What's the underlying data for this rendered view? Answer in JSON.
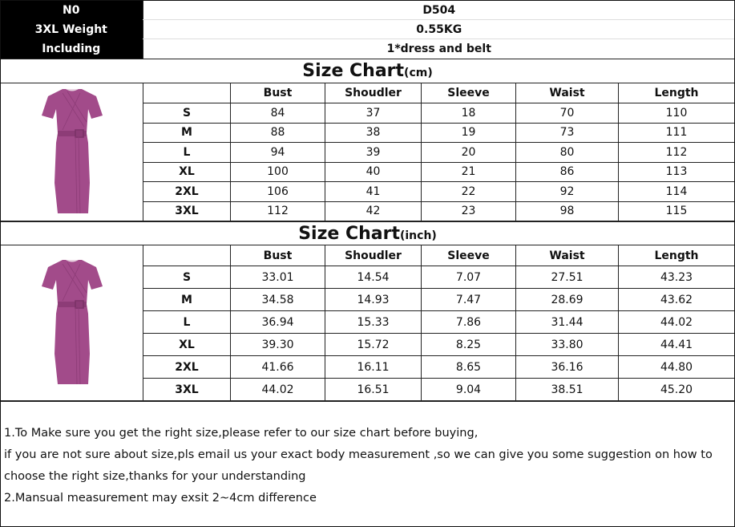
{
  "header": {
    "rows": [
      {
        "label": "N0",
        "value": "D504"
      },
      {
        "label": "3XL Weight",
        "value": "0.55KG"
      },
      {
        "label": "Including",
        "value": "1*dress and belt"
      }
    ]
  },
  "colors": {
    "dress": "#a24b8a"
  },
  "cm": {
    "title": "Size Chart",
    "unit": "(cm)",
    "columns": [
      "Bust",
      "Shoudler",
      "Sleeve",
      "Waist",
      "Length"
    ],
    "rows": [
      [
        "S",
        "84",
        "37",
        "18",
        "70",
        "110"
      ],
      [
        "M",
        "88",
        "38",
        "19",
        "73",
        "111"
      ],
      [
        "L",
        "94",
        "39",
        "20",
        "80",
        "112"
      ],
      [
        "XL",
        "100",
        "40",
        "21",
        "86",
        "113"
      ],
      [
        "2XL",
        "106",
        "41",
        "22",
        "92",
        "114"
      ],
      [
        "3XL",
        "112",
        "42",
        "23",
        "98",
        "115"
      ]
    ]
  },
  "inch": {
    "title": "Size Chart",
    "unit": "(inch)",
    "columns": [
      "Bust",
      "Shoudler",
      "Sleeve",
      "Waist",
      "Length"
    ],
    "rows": [
      [
        "S",
        "33.01",
        "14.54",
        "7.07",
        "27.51",
        "43.23"
      ],
      [
        "M",
        "34.58",
        "14.93",
        "7.47",
        "28.69",
        "43.62"
      ],
      [
        "L",
        "36.94",
        "15.33",
        "7.86",
        "31.44",
        "44.02"
      ],
      [
        "XL",
        "39.30",
        "15.72",
        "8.25",
        "33.80",
        "44.41"
      ],
      [
        "2XL",
        "41.66",
        "16.11",
        "8.65",
        "36.16",
        "44.80"
      ],
      [
        "3XL",
        "44.02",
        "16.51",
        "9.04",
        "38.51",
        "45.20"
      ]
    ]
  },
  "notes": [
    "1.To Make sure you get the right size,please refer to our size chart before buying,",
    "if you are not sure about size,pls email us your exact body measurement ,so we can give you some suggestion on how to choose the right size,thanks for your understanding",
    "2.Mansual measurement may exsit 2~4cm difference"
  ]
}
